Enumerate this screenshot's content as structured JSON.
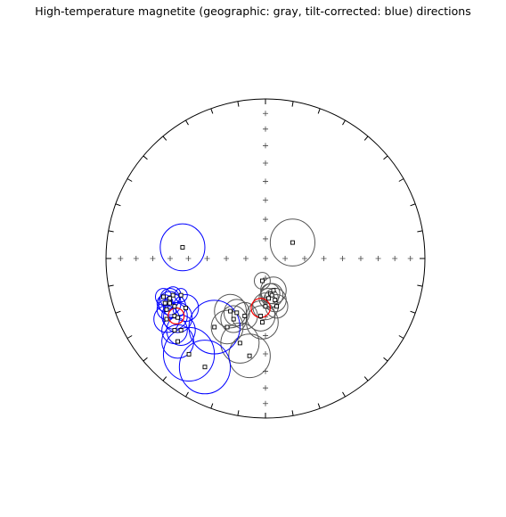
{
  "chart_data": {
    "type": "scatter",
    "projection": "equal-area stereonet",
    "title": "High-temperature magnetite (geographic: gray, tilt-corrected: blue) directions",
    "colors": {
      "geographic": "#555555",
      "tilt_corrected": "#0000ff",
      "mean": "#ff0000",
      "frame": "#000000"
    },
    "series": [
      {
        "name": "geographic",
        "points": [
          {
            "x": 0.17,
            "y": 0.1,
            "a95": 0.14
          },
          {
            "x": -0.02,
            "y": -0.14,
            "a95": 0.05
          },
          {
            "x": 0.03,
            "y": -0.22,
            "a95": 0.06
          },
          {
            "x": 0.05,
            "y": -0.2,
            "a95": 0.08
          },
          {
            "x": 0.04,
            "y": -0.23,
            "a95": 0.07
          },
          {
            "x": 0.06,
            "y": -0.26,
            "a95": 0.07
          },
          {
            "x": 0.02,
            "y": -0.25,
            "a95": 0.06
          },
          {
            "x": 0.07,
            "y": -0.3,
            "a95": 0.07
          },
          {
            "x": 0.0,
            "y": -0.3,
            "a95": 0.08
          },
          {
            "x": -0.22,
            "y": -0.33,
            "a95": 0.1
          },
          {
            "x": -0.18,
            "y": -0.34,
            "a95": 0.08
          },
          {
            "x": -0.2,
            "y": -0.38,
            "a95": 0.08
          },
          {
            "x": -0.13,
            "y": -0.36,
            "a95": 0.08
          },
          {
            "x": -0.03,
            "y": -0.36,
            "a95": 0.09
          },
          {
            "x": -0.02,
            "y": -0.4,
            "a95": 0.1
          },
          {
            "x": -0.24,
            "y": -0.43,
            "a95": 0.1
          },
          {
            "x": -0.16,
            "y": -0.53,
            "a95": 0.12
          },
          {
            "x": -0.1,
            "y": -0.61,
            "a95": 0.13
          }
        ]
      },
      {
        "name": "tilt-corrected",
        "points": [
          {
            "x": -0.52,
            "y": 0.07,
            "a95": 0.14
          },
          {
            "x": -0.53,
            "y": -0.23,
            "a95": 0.04
          },
          {
            "x": -0.58,
            "y": -0.23,
            "a95": 0.05
          },
          {
            "x": -0.6,
            "y": -0.25,
            "a95": 0.06
          },
          {
            "x": -0.64,
            "y": -0.24,
            "a95": 0.05
          },
          {
            "x": -0.63,
            "y": -0.28,
            "a95": 0.05
          },
          {
            "x": -0.6,
            "y": -0.28,
            "a95": 0.07
          },
          {
            "x": -0.57,
            "y": -0.3,
            "a95": 0.07
          },
          {
            "x": -0.5,
            "y": -0.31,
            "a95": 0.08
          },
          {
            "x": -0.62,
            "y": -0.32,
            "a95": 0.06
          },
          {
            "x": -0.57,
            "y": -0.36,
            "a95": 0.08
          },
          {
            "x": -0.62,
            "y": -0.38,
            "a95": 0.08
          },
          {
            "x": -0.55,
            "y": -0.37,
            "a95": 0.09
          },
          {
            "x": -0.57,
            "y": -0.45,
            "a95": 0.08
          },
          {
            "x": -0.53,
            "y": -0.45,
            "a95": 0.09
          },
          {
            "x": -0.55,
            "y": -0.52,
            "a95": 0.1
          },
          {
            "x": -0.32,
            "y": -0.43,
            "a95": 0.16
          },
          {
            "x": -0.48,
            "y": -0.6,
            "a95": 0.16
          },
          {
            "x": -0.38,
            "y": -0.68,
            "a95": 0.16
          }
        ]
      }
    ],
    "means": [
      {
        "x": -0.03,
        "y": -0.31,
        "a95": 0.06
      },
      {
        "x": -0.56,
        "y": -0.36,
        "a95": 0.05
      }
    ]
  }
}
